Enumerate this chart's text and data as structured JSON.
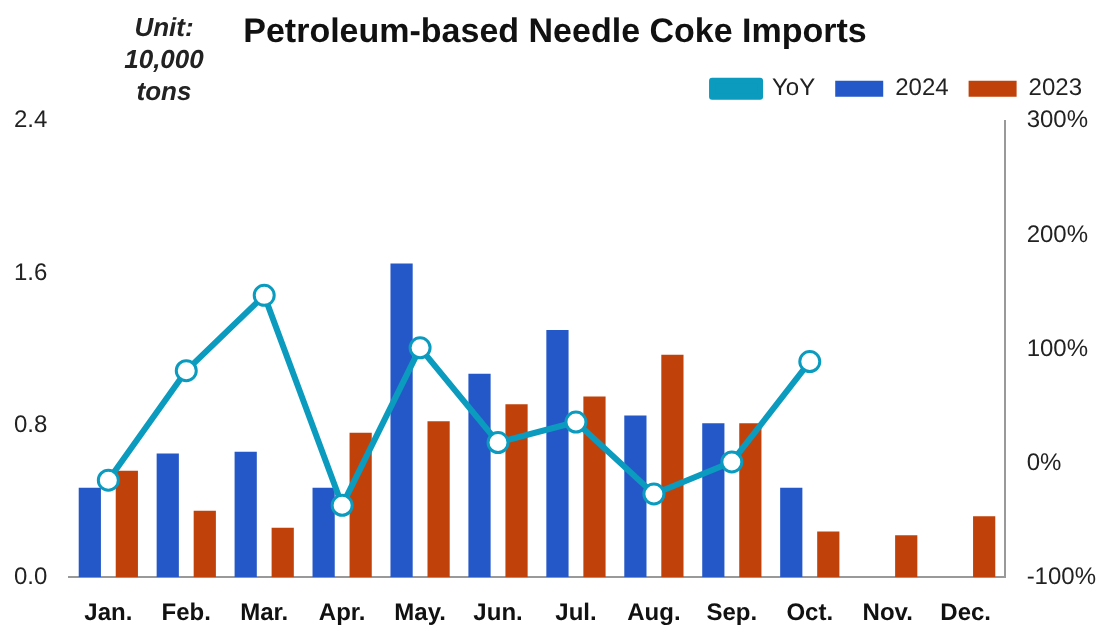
{
  "chart_data": {
    "type": "bar",
    "title": "Petroleum-based Needle Coke Imports",
    "categories": [
      "Jan.",
      "Feb.",
      "Mar.",
      "Apr.",
      "May.",
      "Jun.",
      "Jul.",
      "Aug.",
      "Sep.",
      "Oct.",
      "Nov.",
      "Dec."
    ],
    "series": [
      {
        "name": "2024",
        "color": "#2458c8",
        "values": [
          0.47,
          0.65,
          0.66,
          0.47,
          1.65,
          1.07,
          1.3,
          0.85,
          0.81,
          0.47,
          null,
          null
        ]
      },
      {
        "name": "2023",
        "color": "#c0420a",
        "values": [
          0.56,
          0.35,
          0.26,
          0.76,
          0.82,
          0.91,
          0.95,
          1.17,
          0.81,
          0.24,
          0.22,
          0.32
        ]
      },
      {
        "name": "YoY",
        "type": "line",
        "axis": "y2",
        "color": "#0a9bbf",
        "marker": "circle",
        "values": [
          -15,
          81,
          147,
          -37,
          101,
          18,
          36,
          -27,
          1,
          89,
          null,
          null
        ]
      }
    ],
    "ylim": [
      0,
      2.4
    ],
    "yticks": [
      {
        "value": 0,
        "label": "0.0"
      },
      {
        "value": 0.8,
        "label": "0.8"
      },
      {
        "value": 1.6,
        "label": "1.6"
      },
      {
        "value": 2.4,
        "label": "2.4"
      }
    ],
    "y2lim": [
      -100,
      300
    ],
    "y2ticks": [
      {
        "value": -100,
        "label": "-100%"
      },
      {
        "value": 0,
        "label": "0%"
      },
      {
        "value": 100,
        "label": "100%"
      },
      {
        "value": 200,
        "label": "200%"
      },
      {
        "value": 300,
        "label": "300%"
      }
    ],
    "annotations": [
      "Unit: 10,000 tons"
    ],
    "legend": "top right",
    "grid": false
  }
}
